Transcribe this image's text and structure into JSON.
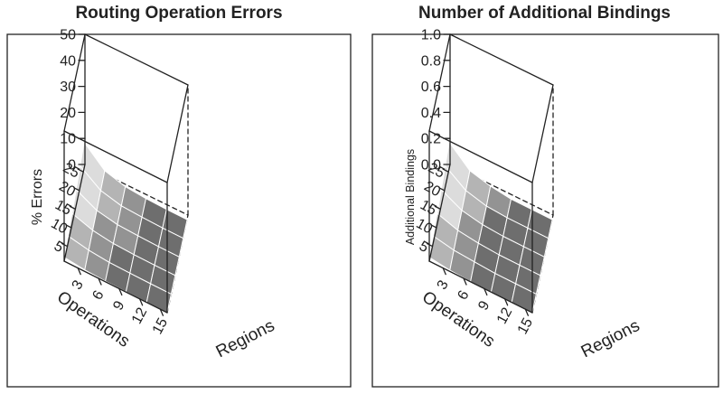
{
  "chart_data": [
    {
      "type": "surface3d",
      "title": "Routing Operation Errors",
      "x_axis": {
        "label": "Regions",
        "ticks": [
          3,
          6,
          9,
          12,
          15
        ],
        "range": [
          1,
          16
        ]
      },
      "y_axis": {
        "label": "Operations",
        "ticks": [
          5,
          10,
          15,
          20,
          25
        ],
        "range": [
          1,
          27
        ]
      },
      "z_axis": {
        "label": "% Errors",
        "ticks": [
          0,
          10,
          20,
          30,
          40,
          50
        ],
        "range": [
          0,
          50
        ]
      },
      "grid_x": [
        1,
        4,
        7,
        10,
        13,
        16
      ],
      "grid_y": [
        1,
        6,
        11,
        16,
        21,
        26
      ],
      "z": [
        [
          1.5,
          0.6,
          0.2,
          0.1,
          0.0,
          0.0
        ],
        [
          2.5,
          1.0,
          0.3,
          0.1,
          0.0,
          0.0
        ],
        [
          4.0,
          1.5,
          0.4,
          0.1,
          0.0,
          0.0
        ],
        [
          6.0,
          2.0,
          0.5,
          0.2,
          0.0,
          0.0
        ],
        [
          8.0,
          2.5,
          0.6,
          0.2,
          0.0,
          0.0
        ],
        [
          10.0,
          3.0,
          0.8,
          0.2,
          0.0,
          0.0
        ]
      ]
    },
    {
      "type": "surface3d",
      "title": "Number of Additional Bindings",
      "x_axis": {
        "label": "Regions",
        "ticks": [
          3,
          6,
          9,
          12,
          15
        ],
        "range": [
          1,
          16
        ]
      },
      "y_axis": {
        "label": "Operations",
        "ticks": [
          5,
          10,
          15,
          20,
          25
        ],
        "range": [
          1,
          27
        ]
      },
      "z_axis": {
        "label": "Additional Bindings",
        "ticks": [
          "0.0",
          "0.2",
          "0.4",
          "0.6",
          "0.8",
          "1.0"
        ],
        "range": [
          0,
          1
        ]
      },
      "grid_x": [
        1,
        4,
        7,
        10,
        13,
        16
      ],
      "grid_y": [
        1,
        6,
        11,
        16,
        21,
        26
      ],
      "z": [
        [
          0.03,
          0.01,
          0.0,
          0.0,
          0.0,
          0.0
        ],
        [
          0.05,
          0.02,
          0.01,
          0.0,
          0.0,
          0.0
        ],
        [
          0.08,
          0.03,
          0.01,
          0.0,
          0.0,
          0.0
        ],
        [
          0.12,
          0.04,
          0.01,
          0.0,
          0.0,
          0.0
        ],
        [
          0.16,
          0.05,
          0.01,
          0.0,
          0.0,
          0.0
        ],
        [
          0.2,
          0.06,
          0.02,
          0.0,
          0.0,
          0.0
        ]
      ]
    }
  ]
}
